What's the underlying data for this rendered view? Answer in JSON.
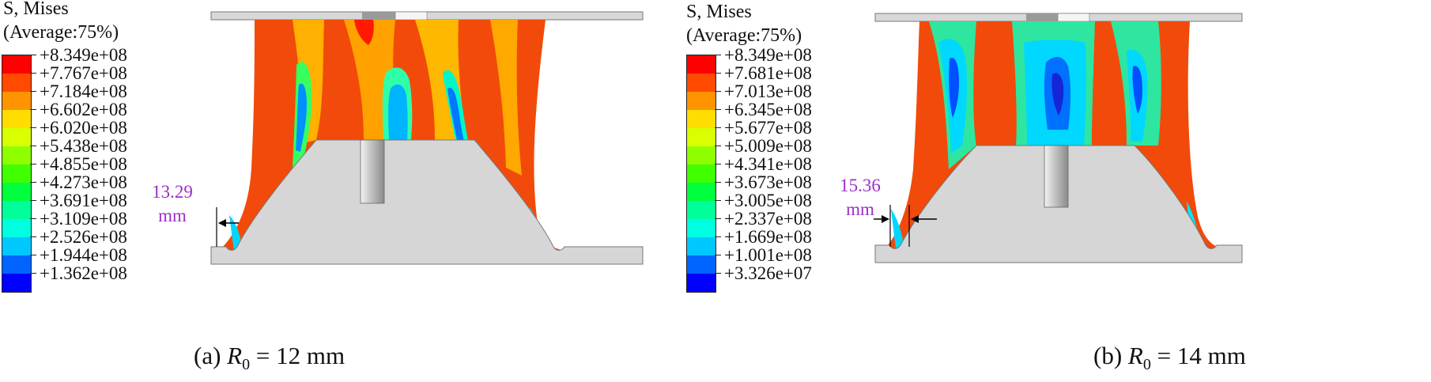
{
  "panels": [
    {
      "id": "a",
      "legend": {
        "title_line1": "S, Mises",
        "title_line2": "(Average:75%)",
        "colors": [
          "#ff0000",
          "#ff4a00",
          "#ff9400",
          "#ffdd00",
          "#d9ff00",
          "#8fff00",
          "#40ff00",
          "#00ff3d",
          "#00ff9a",
          "#00ffe1",
          "#00c8ff",
          "#0064ff",
          "#0000ff"
        ],
        "values": [
          "+8.349e+08",
          "+7.767e+08",
          "+7.184e+08",
          "+6.602e+08",
          "+6.020e+08",
          "+5.438e+08",
          "+4.855e+08",
          "+4.273e+08",
          "+3.691e+08",
          "+3.109e+08",
          "+2.526e+08",
          "+1.944e+08",
          "+1.362e+08"
        ]
      },
      "dimension": {
        "value": "13.29",
        "unit": "mm"
      },
      "caption": {
        "prefix": "(a)",
        "symbol": "R",
        "subscript": "0",
        "rest": "= 12 mm"
      }
    },
    {
      "id": "b",
      "legend": {
        "title_line1": "S, Mises",
        "title_line2": "(Average:75%)",
        "colors": [
          "#ff0000",
          "#ff4a00",
          "#ff9400",
          "#ffdd00",
          "#d9ff00",
          "#8fff00",
          "#40ff00",
          "#00ff3d",
          "#00ff9a",
          "#00ffe1",
          "#00c8ff",
          "#0064ff",
          "#0000ff"
        ],
        "values": [
          "+8.349e+08",
          "+7.681e+08",
          "+7.013e+08",
          "+6.345e+08",
          "+5.677e+08",
          "+5.009e+08",
          "+4.341e+08",
          "+3.673e+08",
          "+3.005e+08",
          "+2.337e+08",
          "+1.669e+08",
          "+1.001e+08",
          "+3.326e+07"
        ]
      },
      "dimension": {
        "value": "15.36",
        "unit": "mm"
      },
      "caption": {
        "prefix": "(b)",
        "symbol": "R",
        "subscript": "0",
        "rest": "= 14 mm"
      }
    }
  ]
}
